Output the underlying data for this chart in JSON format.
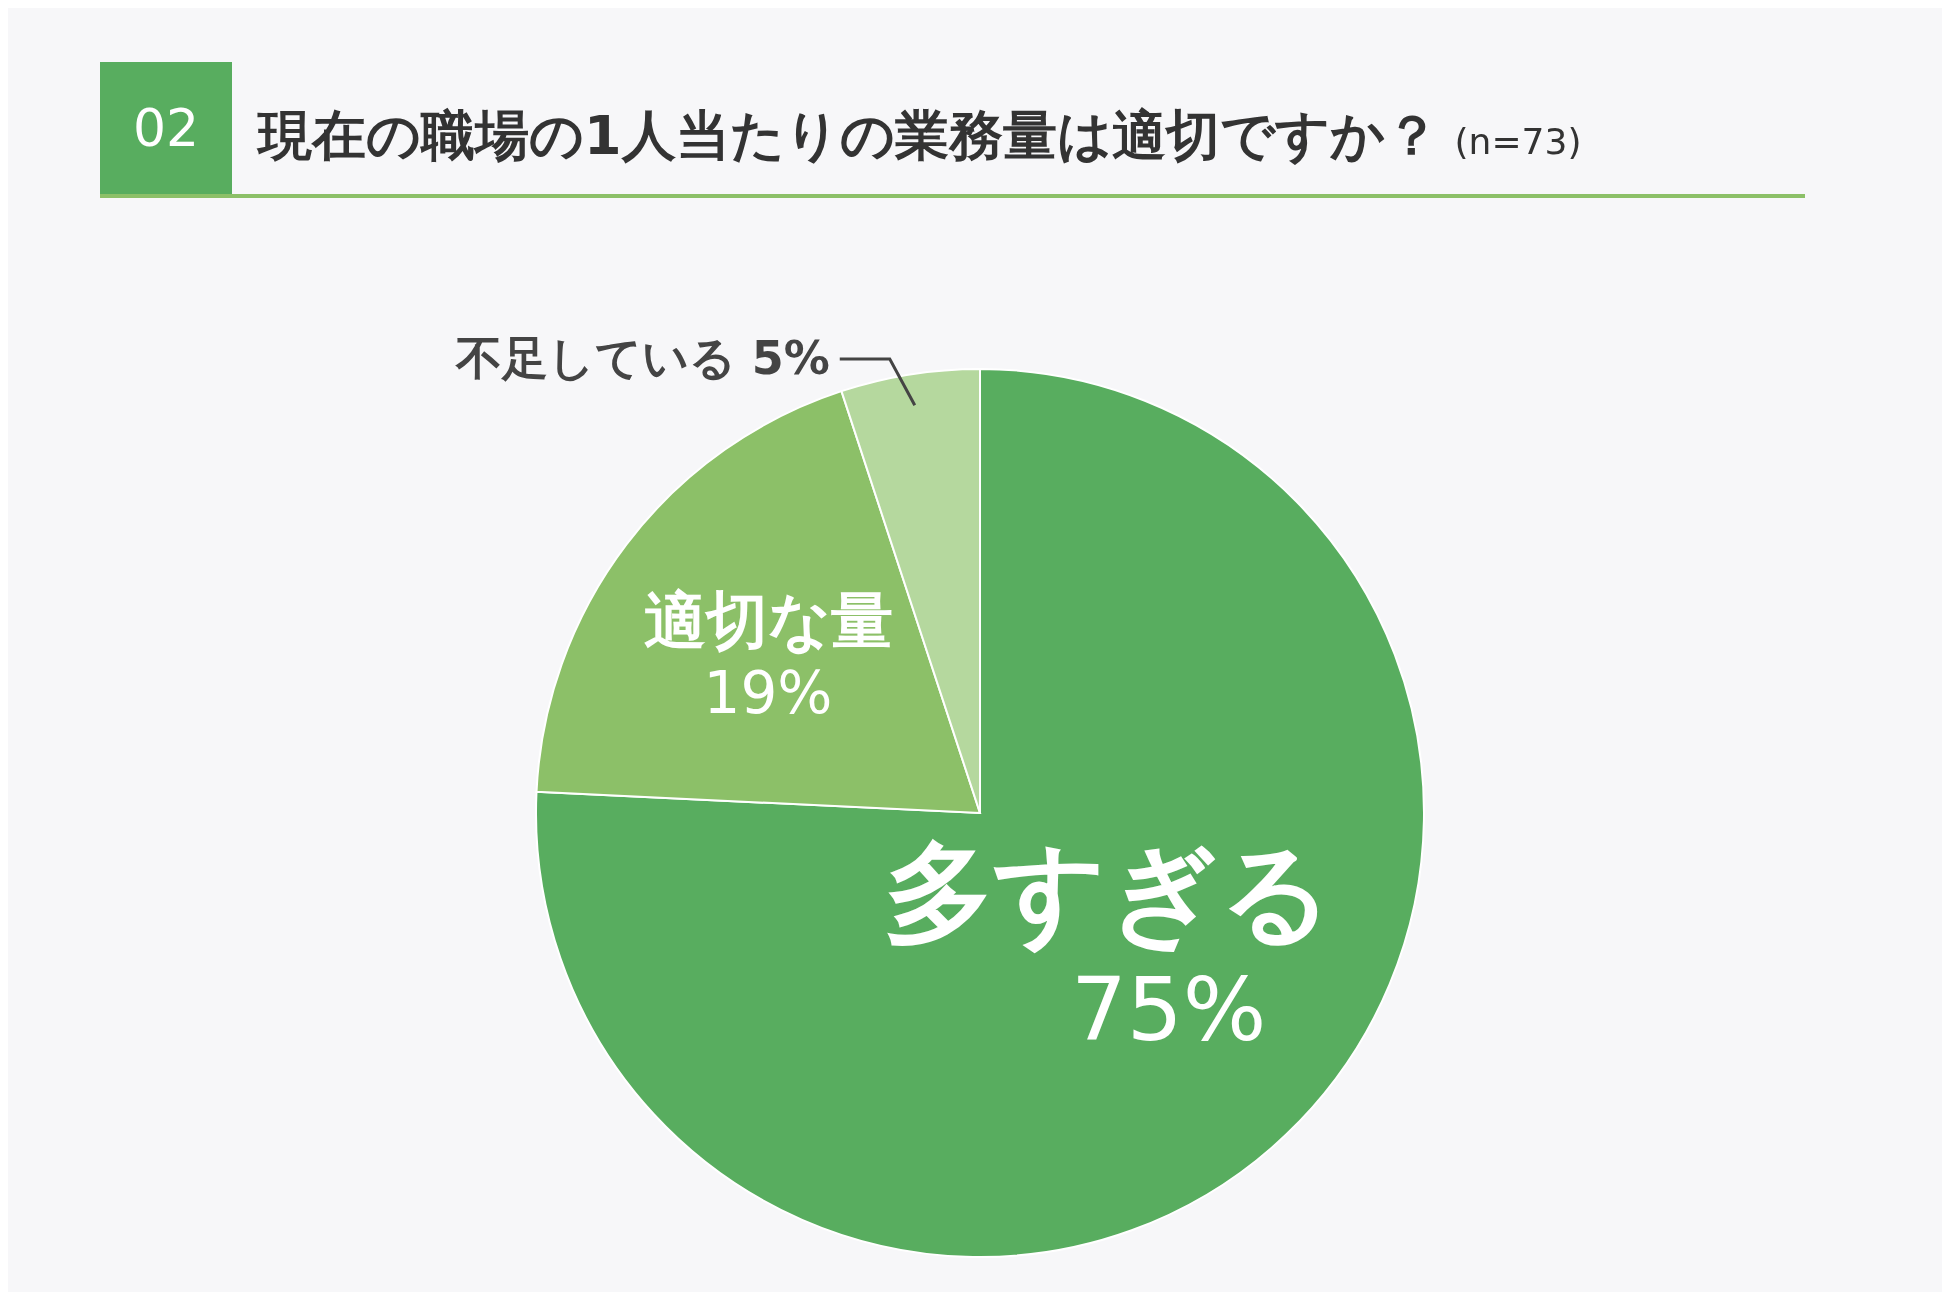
{
  "chart_data": {
    "type": "pie",
    "title": "現在の職場の1人当たりの業務量は適切ですか？",
    "subtitle": "(n=73)",
    "annotations": [
      "02"
    ],
    "categories": [
      "多すぎる",
      "適切な量",
      "不足している"
    ],
    "values": [
      75,
      19,
      5
    ],
    "value_labels": [
      "75%",
      "19%",
      "5%"
    ],
    "colors": [
      "#58ad5f",
      "#8cc068",
      "#b5d89e"
    ]
  }
}
